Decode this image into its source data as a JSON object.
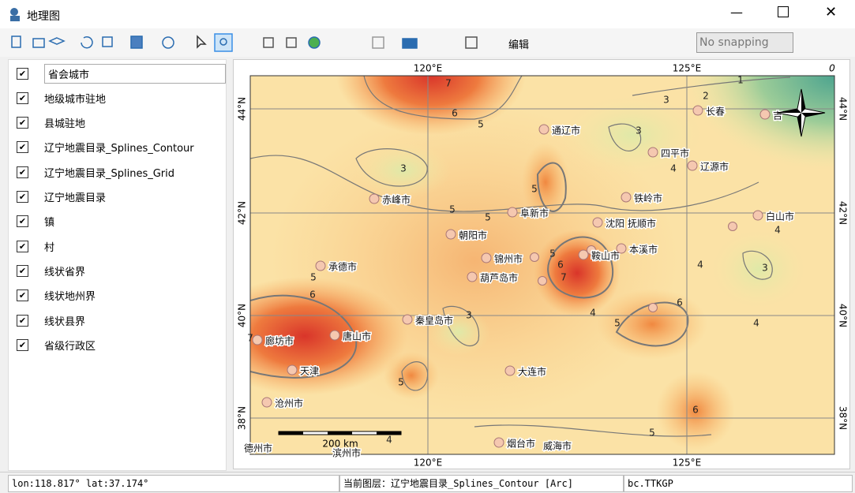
{
  "window": {
    "title": "地理图"
  },
  "toolbar": {
    "edit_menu": "编辑",
    "snapping": "No snapping"
  },
  "layers": [
    "省会城市",
    "地级城市驻地",
    "县城驻地",
    "辽宁地震目录_Splines_Contour",
    "辽宁地震目录_Splines_Grid",
    "辽宁地震目录",
    "镇",
    "村",
    "线状省界",
    "线状地州界",
    "线状县界",
    "省级行政区"
  ],
  "map": {
    "lon_labels": [
      "120°E",
      "125°E"
    ],
    "lat_labels": [
      "44°N",
      "42°N",
      "40°N",
      "38°N"
    ],
    "corner_label": "0",
    "cities": [
      "长春",
      "吉",
      "通辽市",
      "四平市",
      "辽源市",
      "铁岭市",
      "赤峰市",
      "阜新市",
      "白山市",
      "沈阳",
      "抚顺市",
      "朝阳市",
      "锦州市",
      "鞍山市",
      "本溪市",
      "承德市",
      "葫芦岛市",
      "秦皇岛市",
      "廊坊市",
      "唐山市",
      "天津",
      "大连市",
      "沧州市",
      "德州市",
      "滨州市",
      "烟台市",
      "威海市"
    ],
    "contour_labels": [
      "7",
      "6",
      "5",
      "3",
      "2",
      "1",
      "3",
      "4",
      "3",
      "5",
      "5",
      "5",
      "4",
      "3",
      "4",
      "5",
      "6",
      "7",
      "5",
      "6",
      "4",
      "5",
      "6",
      "4",
      "3",
      "7",
      "5",
      "6",
      "5",
      "4"
    ],
    "scale_label": "200 km"
  },
  "status": {
    "coords": "lon:118.817°  lat:37.174°",
    "current_layer": "当前图层：辽宁地震目录_Splines_Contour [Arc]",
    "code": "bc.TTKGP"
  }
}
